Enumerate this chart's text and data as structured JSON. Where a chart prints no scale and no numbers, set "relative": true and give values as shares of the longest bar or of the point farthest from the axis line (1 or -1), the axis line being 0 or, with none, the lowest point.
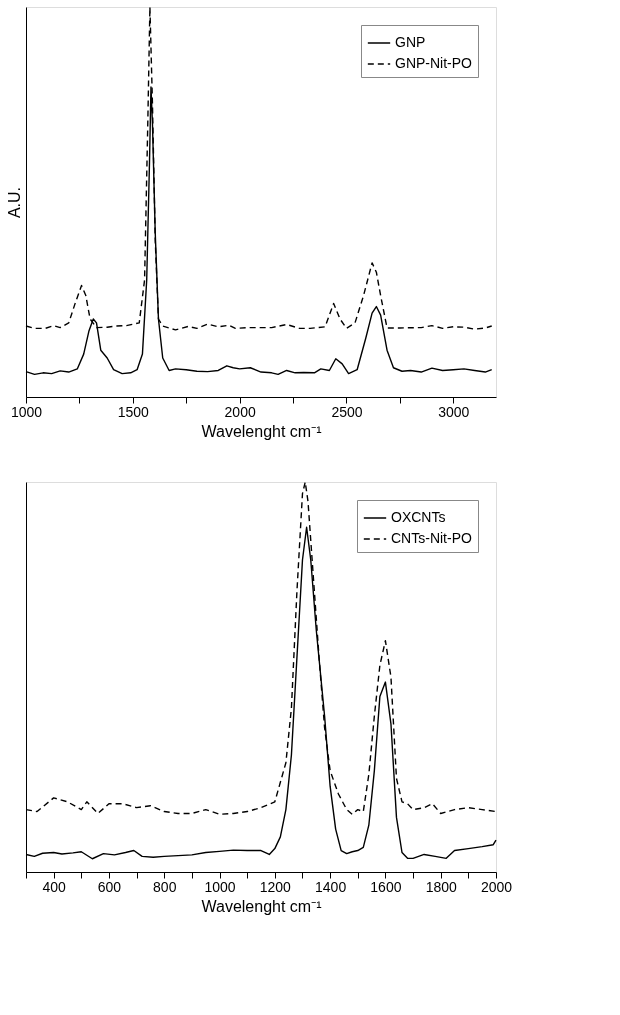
{
  "chart_data": [
    {
      "type": "line",
      "relative": true,
      "ylabel": "A.U.",
      "xlabel": "Wavelenght cm⁻¹",
      "xlim": [
        1000,
        3200
      ],
      "xticks": [
        1000,
        {
          "value": 1250,
          "label": null
        },
        1500,
        {
          "value": 1750,
          "label": null
        },
        2000,
        {
          "value": 2250,
          "label": null
        },
        2500,
        {
          "value": 2750,
          "label": null
        },
        3000
      ],
      "legend": "top right",
      "grid": false,
      "marker": "none",
      "series": [
        {
          "name": "GNP",
          "color": "#000000",
          "line_style": "solid",
          "x": [
            1000,
            1040,
            1080,
            1120,
            1160,
            1200,
            1240,
            1270,
            1295,
            1315,
            1330,
            1350,
            1380,
            1410,
            1450,
            1490,
            1520,
            1545,
            1565,
            1578,
            1585,
            1592,
            1605,
            1620,
            1640,
            1670,
            1700,
            1750,
            1800,
            1850,
            1900,
            1940,
            1970,
            2000,
            2050,
            2100,
            2150,
            2180,
            2220,
            2260,
            2300,
            2350,
            2380,
            2420,
            2450,
            2480,
            2510,
            2550,
            2590,
            2620,
            2640,
            2660,
            2690,
            2720,
            2760,
            2800,
            2850,
            2900,
            2950,
            3000,
            3050,
            3100,
            3150,
            3180
          ],
          "values": [
            0.065,
            0.058,
            0.062,
            0.06,
            0.067,
            0.064,
            0.072,
            0.11,
            0.17,
            0.2,
            0.19,
            0.12,
            0.1,
            0.07,
            0.06,
            0.062,
            0.07,
            0.11,
            0.3,
            0.6,
            0.795,
            0.7,
            0.42,
            0.2,
            0.1,
            0.068,
            0.072,
            0.07,
            0.066,
            0.065,
            0.068,
            0.08,
            0.075,
            0.072,
            0.075,
            0.064,
            0.062,
            0.058,
            0.068,
            0.062,
            0.063,
            0.062,
            0.072,
            0.068,
            0.098,
            0.085,
            0.06,
            0.07,
            0.15,
            0.215,
            0.232,
            0.21,
            0.12,
            0.075,
            0.066,
            0.068,
            0.064,
            0.074,
            0.068,
            0.07,
            0.072,
            0.068,
            0.064,
            0.07
          ]
        },
        {
          "name": "GNP-Nit-PO",
          "color": "#000000",
          "line_style": "dashed",
          "x": [
            1000,
            1040,
            1090,
            1130,
            1160,
            1200,
            1230,
            1260,
            1280,
            1300,
            1330,
            1380,
            1420,
            1470,
            1530,
            1555,
            1570,
            1580,
            1592,
            1605,
            1620,
            1640,
            1700,
            1760,
            1800,
            1850,
            1900,
            1950,
            1980,
            2050,
            2150,
            2220,
            2280,
            2330,
            2400,
            2440,
            2470,
            2500,
            2540,
            2580,
            2620,
            2640,
            2660,
            2690,
            2750,
            2850,
            2900,
            2950,
            3000,
            3050,
            3100,
            3150,
            3180
          ],
          "values": [
            0.182,
            0.176,
            0.176,
            0.183,
            0.178,
            0.19,
            0.24,
            0.286,
            0.26,
            0.2,
            0.178,
            0.179,
            0.182,
            0.183,
            0.19,
            0.3,
            0.7,
            1.0,
            0.75,
            0.4,
            0.2,
            0.182,
            0.172,
            0.181,
            0.176,
            0.187,
            0.18,
            0.184,
            0.176,
            0.178,
            0.178,
            0.186,
            0.176,
            0.176,
            0.18,
            0.24,
            0.2,
            0.176,
            0.19,
            0.26,
            0.344,
            0.32,
            0.26,
            0.177,
            0.177,
            0.178,
            0.183,
            0.176,
            0.18,
            0.179,
            0.174,
            0.177,
            0.182
          ]
        }
      ]
    },
    {
      "type": "line",
      "relative": true,
      "xlabel": "Wavelenght cm⁻¹",
      "xlim": [
        300,
        2000
      ],
      "xticks": [
        {
          "value": 300,
          "label": null
        },
        400,
        {
          "value": 500,
          "label": null
        },
        600,
        {
          "value": 700,
          "label": null
        },
        800,
        {
          "value": 900,
          "label": null
        },
        1000,
        {
          "value": 1100,
          "label": null
        },
        1200,
        {
          "value": 1300,
          "label": null
        },
        1400,
        {
          "value": 1500,
          "label": null
        },
        1600,
        {
          "value": 1700,
          "label": null
        },
        1800,
        {
          "value": 1900,
          "label": null
        },
        2000
      ],
      "legend": "top right",
      "grid": false,
      "marker": "none",
      "series": [
        {
          "name": "OXCNTs",
          "color": "#000000",
          "line_style": "solid",
          "x": [
            300,
            330,
            360,
            400,
            430,
            470,
            500,
            540,
            580,
            620,
            660,
            690,
            720,
            760,
            800,
            850,
            900,
            950,
            1000,
            1050,
            1100,
            1150,
            1180,
            1200,
            1220,
            1240,
            1260,
            1280,
            1300,
            1315,
            1330,
            1350,
            1380,
            1400,
            1420,
            1440,
            1460,
            1480,
            1500,
            1520,
            1540,
            1560,
            1580,
            1600,
            1620,
            1640,
            1660,
            1680,
            1700,
            1740,
            1780,
            1820,
            1850,
            1900,
            1950,
            1990,
            2000
          ],
          "values": [
            0.045,
            0.04,
            0.048,
            0.05,
            0.046,
            0.049,
            0.052,
            0.034,
            0.047,
            0.044,
            0.05,
            0.055,
            0.04,
            0.038,
            0.04,
            0.042,
            0.044,
            0.05,
            0.053,
            0.056,
            0.055,
            0.055,
            0.045,
            0.06,
            0.09,
            0.16,
            0.3,
            0.55,
            0.8,
            0.884,
            0.8,
            0.62,
            0.4,
            0.22,
            0.11,
            0.055,
            0.047,
            0.052,
            0.055,
            0.063,
            0.12,
            0.26,
            0.45,
            0.487,
            0.38,
            0.14,
            0.05,
            0.035,
            0.035,
            0.045,
            0.04,
            0.035,
            0.055,
            0.06,
            0.065,
            0.07,
            0.082
          ]
        },
        {
          "name": "CNTs-Nit-PO",
          "color": "#000000",
          "line_style": "dashed",
          "x": [
            300,
            340,
            400,
            450,
            500,
            520,
            560,
            600,
            650,
            700,
            750,
            800,
            850,
            900,
            950,
            1000,
            1050,
            1100,
            1150,
            1200,
            1220,
            1240,
            1260,
            1280,
            1300,
            1310,
            1320,
            1340,
            1360,
            1380,
            1400,
            1430,
            1460,
            1480,
            1500,
            1520,
            1540,
            1560,
            1580,
            1600,
            1620,
            1640,
            1660,
            1680,
            1700,
            1740,
            1770,
            1800,
            1850,
            1900,
            1950,
            2000
          ],
          "values": [
            0.16,
            0.155,
            0.19,
            0.18,
            0.16,
            0.18,
            0.15,
            0.175,
            0.175,
            0.165,
            0.17,
            0.155,
            0.15,
            0.15,
            0.16,
            0.148,
            0.15,
            0.155,
            0.165,
            0.18,
            0.23,
            0.28,
            0.42,
            0.72,
            0.97,
            1.0,
            0.95,
            0.75,
            0.55,
            0.37,
            0.26,
            0.2,
            0.16,
            0.148,
            0.16,
            0.155,
            0.25,
            0.4,
            0.53,
            0.593,
            0.5,
            0.24,
            0.18,
            0.175,
            0.16,
            0.165,
            0.175,
            0.15,
            0.16,
            0.165,
            0.16,
            0.155
          ]
        }
      ]
    }
  ]
}
